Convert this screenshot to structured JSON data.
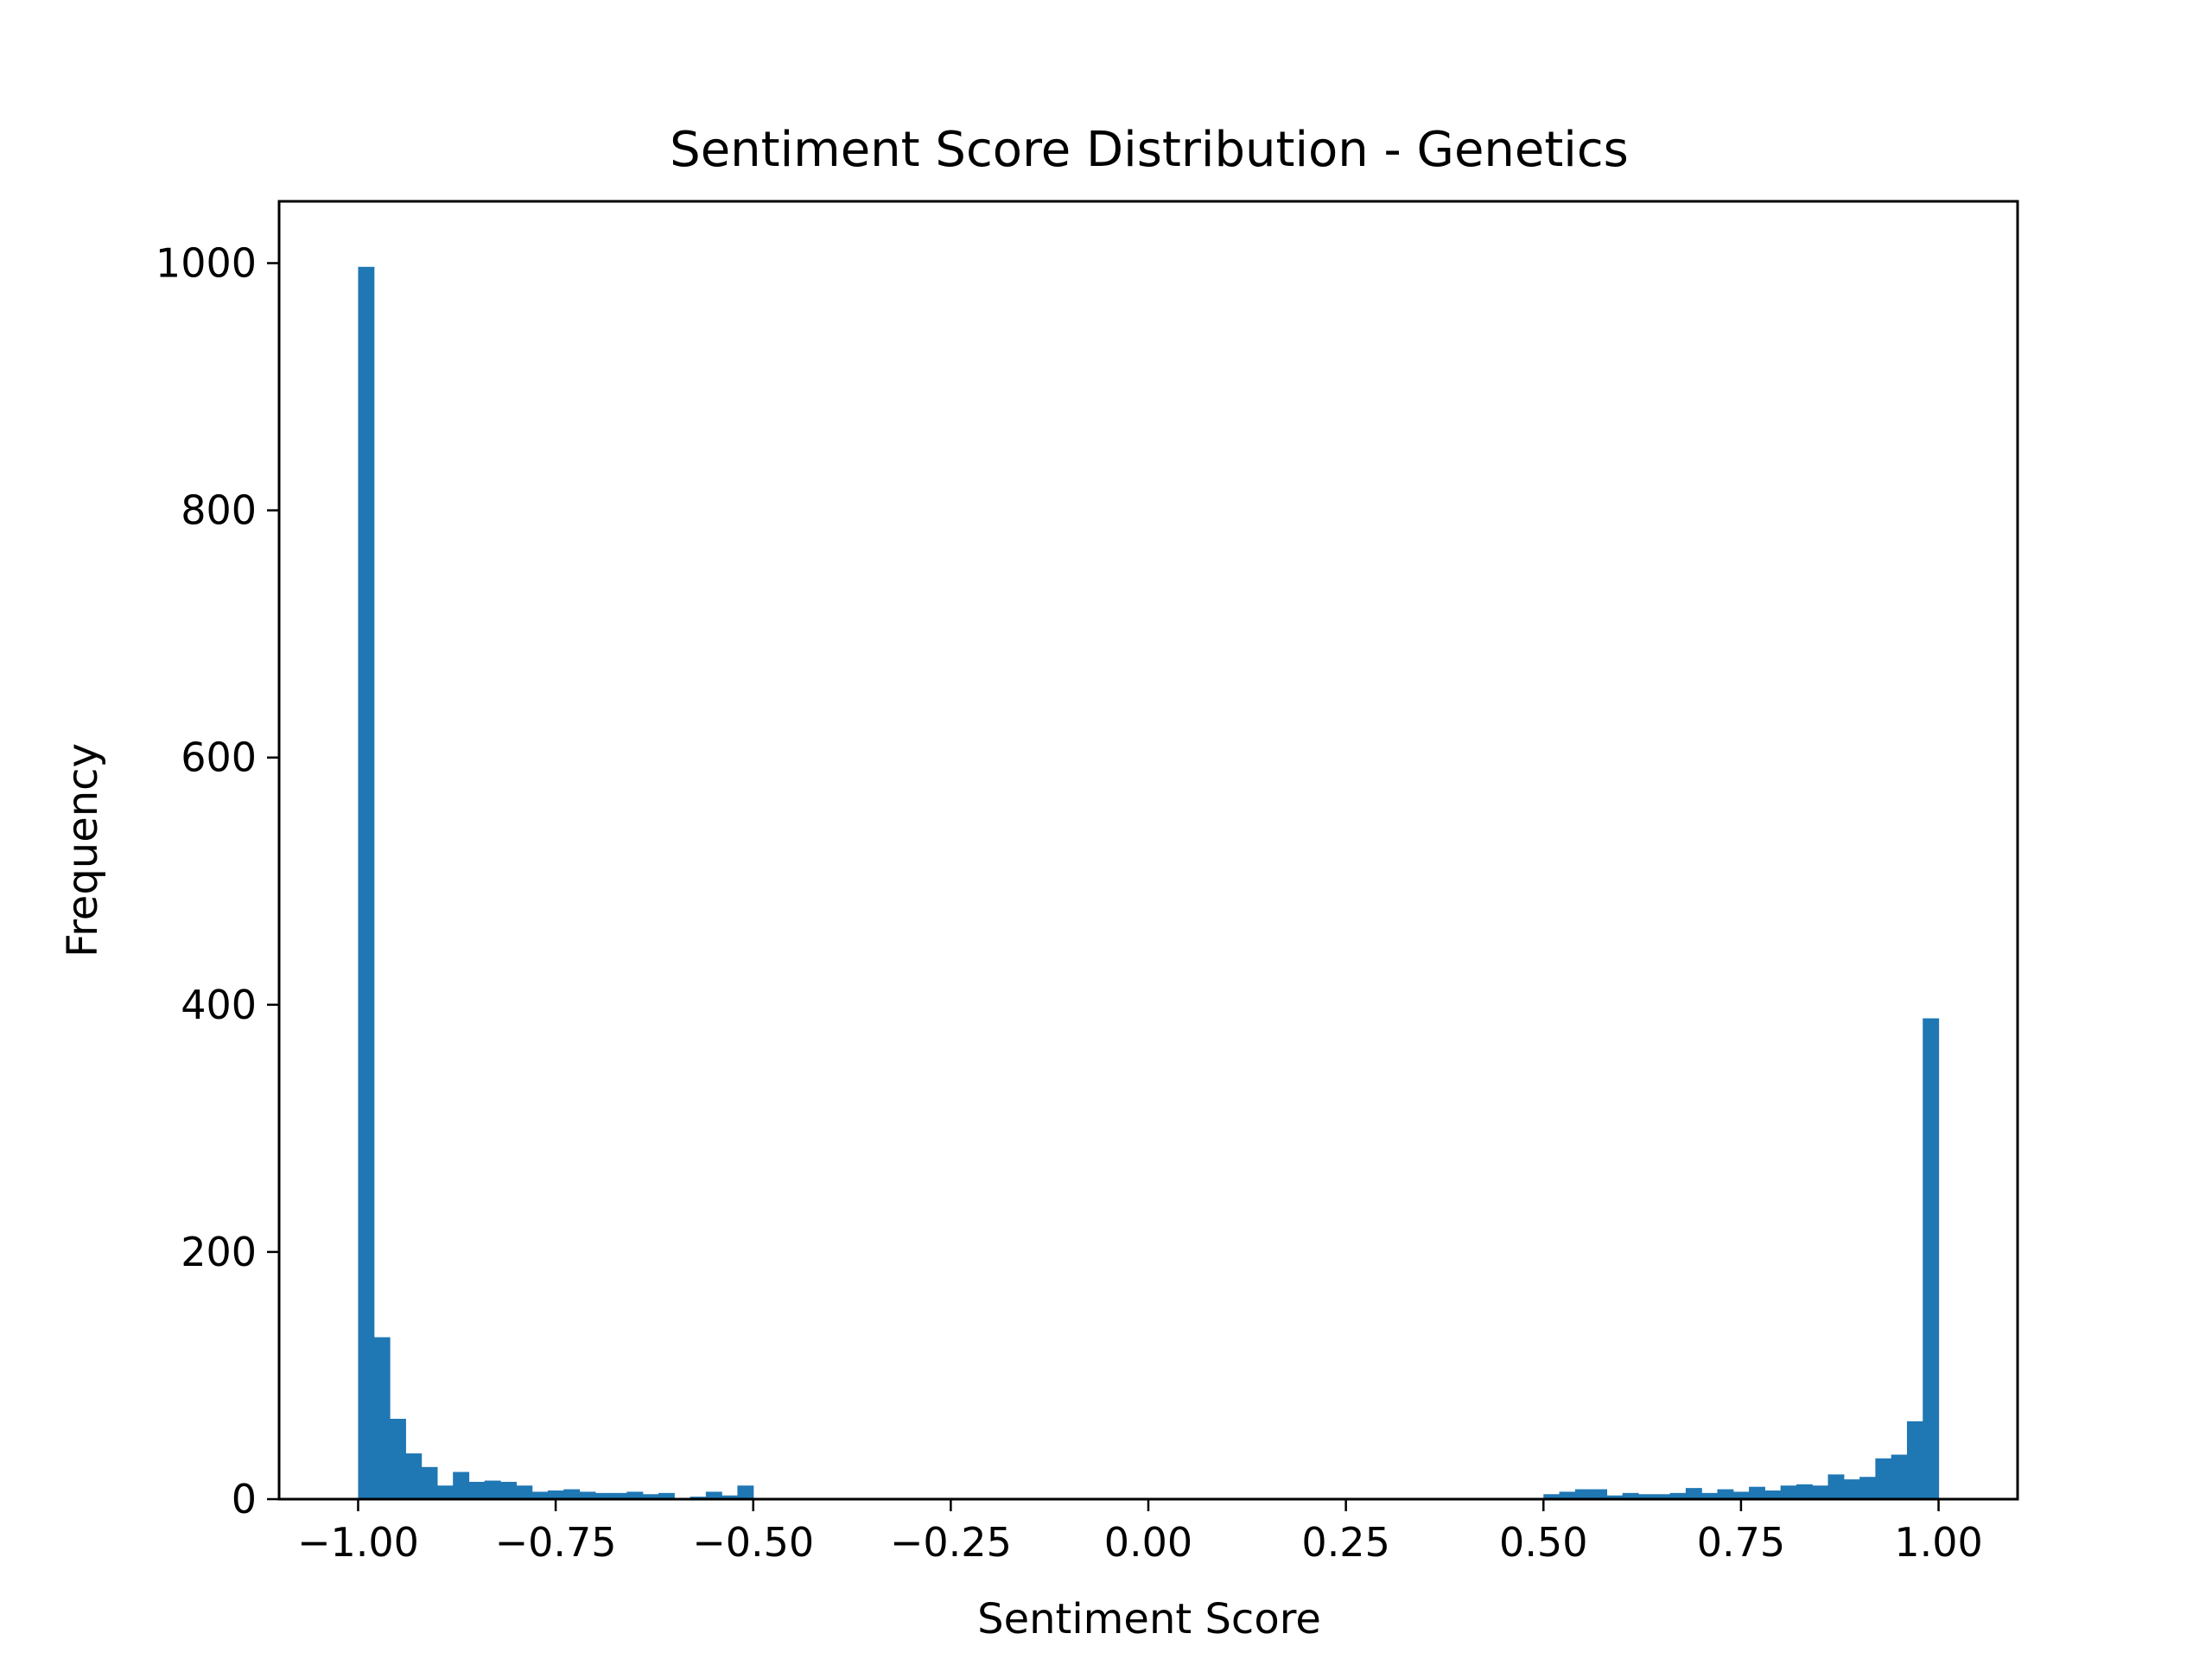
{
  "chart_data": {
    "type": "bar",
    "title": "Sentiment Score Distribution - Genetics",
    "xlabel": "Sentiment Score",
    "ylabel": "Frequency",
    "xlim": [
      -1.1,
      1.1
    ],
    "ylim": [
      0,
      1050
    ],
    "bin_width": 0.02,
    "x_ticks": [
      -1.0,
      -0.75,
      -0.5,
      -0.25,
      0.0,
      0.25,
      0.5,
      0.75,
      1.0
    ],
    "x_tick_labels": [
      "−1.00",
      "−0.75",
      "−0.50",
      "−0.25",
      "0.00",
      "0.25",
      "0.50",
      "0.75",
      "1.00"
    ],
    "y_ticks": [
      0,
      200,
      400,
      600,
      800,
      1000
    ],
    "y_tick_labels": [
      "0",
      "200",
      "400",
      "600",
      "800",
      "1000"
    ],
    "grid": false,
    "bar_color": "#1f77b4",
    "x": [
      -0.99,
      -0.97,
      -0.95,
      -0.93,
      -0.91,
      -0.89,
      -0.87,
      -0.85,
      -0.83,
      -0.81,
      -0.79,
      -0.77,
      -0.75,
      -0.73,
      -0.71,
      -0.69,
      -0.67,
      -0.65,
      -0.63,
      -0.61,
      -0.59,
      -0.57,
      -0.55,
      -0.53,
      -0.51,
      0.51,
      0.53,
      0.55,
      0.57,
      0.59,
      0.61,
      0.63,
      0.65,
      0.67,
      0.69,
      0.71,
      0.73,
      0.75,
      0.77,
      0.79,
      0.81,
      0.83,
      0.85,
      0.87,
      0.89,
      0.91,
      0.93,
      0.95,
      0.97,
      0.99
    ],
    "values": [
      997,
      131,
      65,
      37,
      26,
      11,
      22,
      14,
      15,
      14,
      11,
      6,
      7,
      8,
      6,
      5,
      5,
      6,
      4,
      5,
      1,
      2,
      6,
      3,
      11,
      4,
      6,
      8,
      8,
      3,
      5,
      4,
      4,
      5,
      9,
      5,
      8,
      6,
      10,
      7,
      11,
      12,
      11,
      20,
      16,
      18,
      33,
      36,
      63,
      389
    ]
  }
}
